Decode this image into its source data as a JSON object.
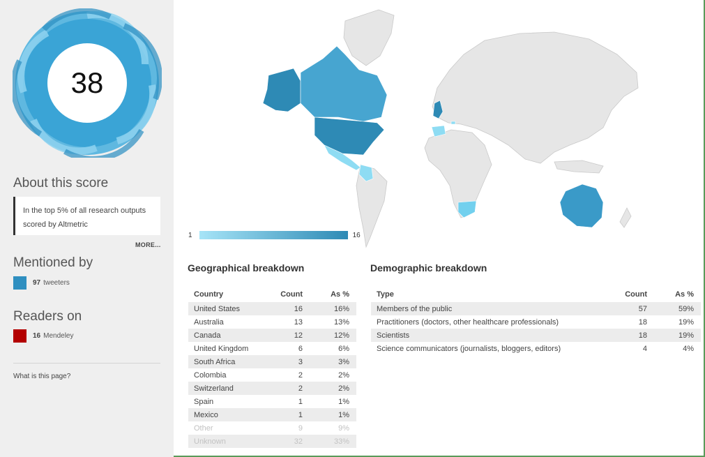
{
  "score": "38",
  "about": {
    "title": "About this score",
    "text": "In the top 5% of all research outputs scored by Altmetric",
    "more_label": "MORE..."
  },
  "mentioned": {
    "title": "Mentioned by",
    "count": "97",
    "label": "tweeters",
    "color": "#2f8fc0"
  },
  "readers": {
    "title": "Readers on",
    "count": "16",
    "label": "Mendeley",
    "color": "#b30000"
  },
  "whatis_label": "What is this page?",
  "map_scale": {
    "min": "1",
    "max": "16",
    "min_color": "#a6e4f7",
    "max_color": "#2e8ab5"
  },
  "geo": {
    "title": "Geographical breakdown",
    "columns": [
      "Country",
      "Count",
      "As %"
    ],
    "rows": [
      [
        "United States",
        "16",
        "16%"
      ],
      [
        "Australia",
        "13",
        "13%"
      ],
      [
        "Canada",
        "12",
        "12%"
      ],
      [
        "United Kingdom",
        "6",
        "6%"
      ],
      [
        "South Africa",
        "3",
        "3%"
      ],
      [
        "Colombia",
        "2",
        "2%"
      ],
      [
        "Switzerland",
        "2",
        "2%"
      ],
      [
        "Spain",
        "1",
        "1%"
      ],
      [
        "Mexico",
        "1",
        "1%"
      ],
      [
        "Other",
        "9",
        "9%"
      ],
      [
        "Unknown",
        "32",
        "33%"
      ]
    ]
  },
  "demo": {
    "title": "Demographic breakdown",
    "columns": [
      "Type",
      "Count",
      "As %"
    ],
    "rows": [
      [
        "Members of the public",
        "57",
        "59%"
      ],
      [
        "Practitioners (doctors, other healthcare professionals)",
        "18",
        "19%"
      ],
      [
        "Scientists",
        "18",
        "19%"
      ],
      [
        "Science communicators (journalists, bloggers, editors)",
        "4",
        "4%"
      ]
    ]
  }
}
